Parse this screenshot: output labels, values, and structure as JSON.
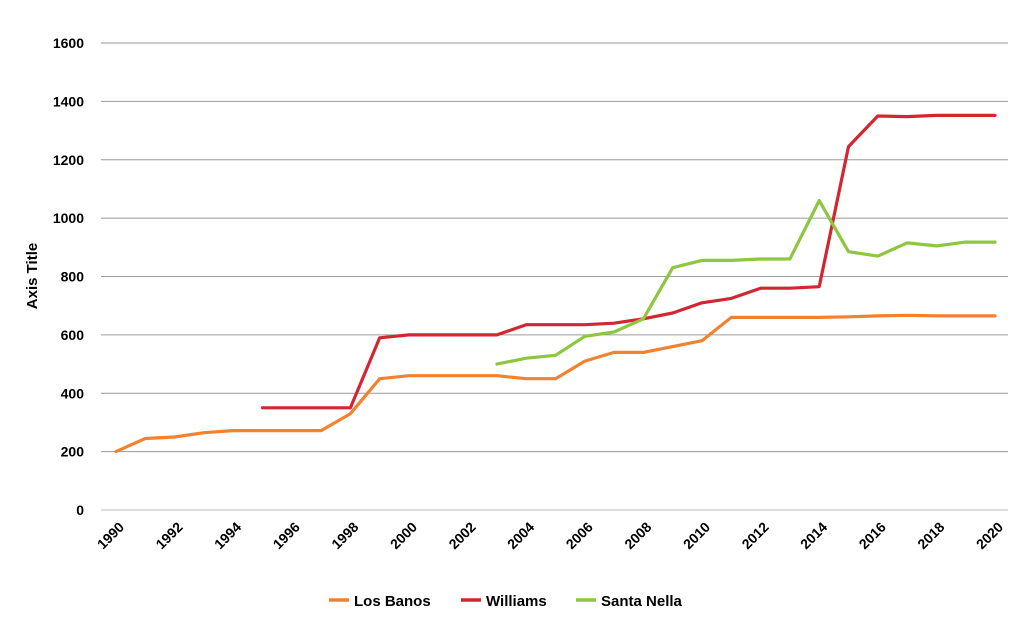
{
  "chart_data": {
    "type": "line",
    "title": "",
    "xlabel": "",
    "ylabel": "Axis Title",
    "xlim": [
      1990,
      2020
    ],
    "ylim": [
      0,
      1600
    ],
    "y_ticks": [
      0,
      200,
      400,
      600,
      800,
      1000,
      1200,
      1400,
      1600
    ],
    "x_ticks": [
      1990,
      1992,
      1994,
      1996,
      1998,
      2000,
      2002,
      2004,
      2006,
      2008,
      2010,
      2012,
      2014,
      2016,
      2018,
      2020
    ],
    "grid": "horizontal",
    "legend_position": "bottom",
    "series": [
      {
        "name": "Los Banos",
        "color": "#F28130",
        "x": [
          1990,
          1991,
          1992,
          1993,
          1994,
          1995,
          1996,
          1997,
          1998,
          1999,
          2000,
          2001,
          2002,
          2003,
          2004,
          2005,
          2006,
          2007,
          2008,
          2009,
          2010,
          2011,
          2012,
          2013,
          2014,
          2015,
          2016,
          2017,
          2018,
          2019,
          2020
        ],
        "values": [
          200,
          245,
          250,
          265,
          272,
          272,
          272,
          272,
          330,
          450,
          460,
          460,
          460,
          460,
          450,
          450,
          510,
          540,
          540,
          560,
          580,
          660,
          660,
          660,
          660,
          662,
          665,
          667,
          665,
          665,
          665
        ]
      },
      {
        "name": "Williams",
        "color": "#D22630",
        "x": [
          1995,
          1996,
          1997,
          1998,
          1999,
          2000,
          2001,
          2002,
          2003,
          2004,
          2005,
          2006,
          2007,
          2008,
          2009,
          2010,
          2011,
          2012,
          2013,
          2014,
          2015,
          2016,
          2017,
          2018,
          2019,
          2020
        ],
        "values": [
          350,
          350,
          350,
          350,
          590,
          600,
          600,
          600,
          600,
          635,
          635,
          635,
          640,
          655,
          675,
          710,
          725,
          760,
          760,
          765,
          1245,
          1350,
          1348,
          1352,
          1352,
          1352
        ]
      },
      {
        "name": "Santa Nella",
        "color": "#8DC63F",
        "x": [
          2003,
          2004,
          2005,
          2006,
          2007,
          2008,
          2009,
          2010,
          2011,
          2012,
          2013,
          2014,
          2015,
          2016,
          2017,
          2018,
          2019,
          2020
        ],
        "values": [
          500,
          520,
          530,
          595,
          610,
          655,
          830,
          855,
          855,
          860,
          860,
          1060,
          885,
          870,
          915,
          905,
          918,
          918
        ]
      }
    ]
  }
}
